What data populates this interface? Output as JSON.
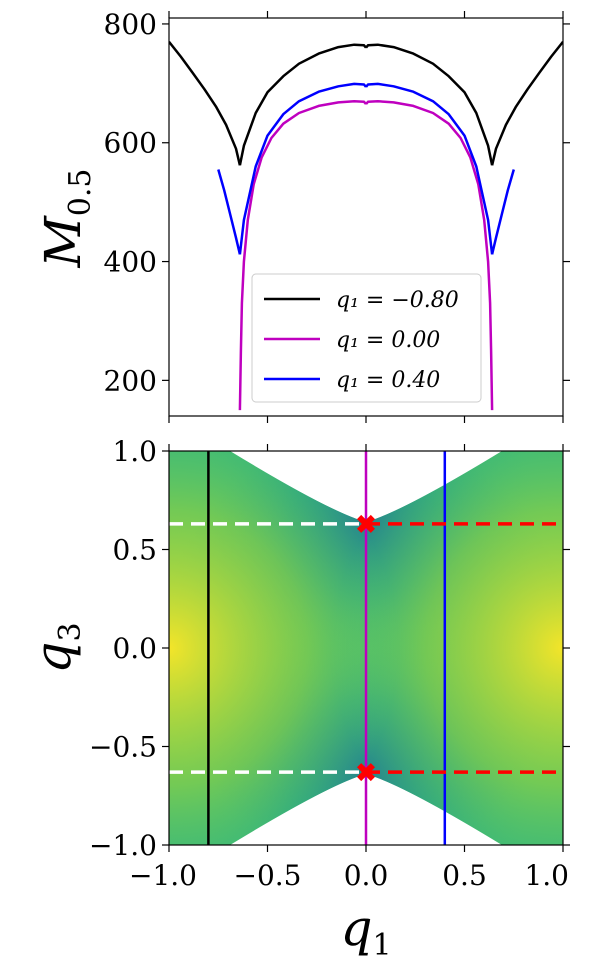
{
  "figure": {
    "top_panel": {
      "type": "line",
      "ylabel": "M_0.5",
      "ylabel_main": "M",
      "ylabel_sub": "0.5",
      "xlim": [
        -1.0,
        1.0
      ],
      "ylim": [
        140,
        810
      ],
      "yticks": [
        200,
        400,
        600,
        800
      ],
      "ytick_labels": [
        "200",
        "400",
        "600",
        "800"
      ],
      "legend_position": "lower-center",
      "series": [
        {
          "name": "q1 = -0.80",
          "label": "q₁ = −0.80",
          "color": "#000000",
          "segments": [
            {
              "q": [
                -1.0,
                -0.94,
                -0.88,
                -0.82,
                -0.76,
                -0.71,
                -0.66,
                -0.64
              ],
              "M": [
                770,
                745,
                718,
                690,
                660,
                630,
                590,
                562
              ]
            },
            {
              "q": [
                -0.64,
                -0.62,
                -0.56,
                -0.5,
                -0.42,
                -0.34,
                -0.24,
                -0.14,
                -0.06,
                -0.01,
                0.0
              ],
              "M": [
                562,
                595,
                650,
                685,
                712,
                733,
                750,
                761,
                765,
                764,
                760
              ]
            },
            {
              "q": [
                0.0,
                0.01,
                0.06,
                0.14,
                0.24,
                0.34,
                0.42,
                0.5,
                0.56,
                0.62,
                0.64
              ],
              "M": [
                760,
                764,
                765,
                761,
                750,
                733,
                712,
                685,
                650,
                595,
                562
              ]
            },
            {
              "q": [
                0.64,
                0.66,
                0.71,
                0.76,
                0.82,
                0.88,
                0.94,
                1.0
              ],
              "M": [
                562,
                590,
                630,
                660,
                690,
                718,
                745,
                770
              ]
            }
          ]
        },
        {
          "name": "q1 = 0.00",
          "label": "q₁ = 0.00",
          "color": "#bf00bf",
          "segments": [
            {
              "q": [
                -0.64,
                -0.635,
                -0.63,
                -0.62,
                -0.6,
                -0.57,
                -0.53,
                -0.48,
                -0.42,
                -0.34,
                -0.24,
                -0.14,
                -0.06,
                -0.01,
                0.0
              ],
              "M": [
                150,
                250,
                330,
                400,
                470,
                530,
                575,
                608,
                632,
                650,
                662,
                668,
                670,
                669,
                665
              ]
            },
            {
              "q": [
                0.0,
                0.01,
                0.06,
                0.14,
                0.24,
                0.34,
                0.42,
                0.48,
                0.53,
                0.57,
                0.6,
                0.62,
                0.63,
                0.635,
                0.64
              ],
              "M": [
                665,
                669,
                670,
                668,
                662,
                650,
                632,
                608,
                575,
                530,
                470,
                400,
                330,
                250,
                150
              ]
            }
          ]
        },
        {
          "name": "q1 = 0.40",
          "label": "q₁ = 0.40",
          "color": "#0000ff",
          "segments": [
            {
              "q": [
                -0.75,
                -0.72,
                -0.69,
                -0.66,
                -0.64
              ],
              "M": [
                555,
                520,
                480,
                440,
                412
              ]
            },
            {
              "q": [
                -0.64,
                -0.62,
                -0.56,
                -0.5,
                -0.42,
                -0.34,
                -0.24,
                -0.14,
                -0.06,
                -0.01,
                0.0
              ],
              "M": [
                412,
                470,
                560,
                612,
                648,
                670,
                686,
                695,
                699,
                698,
                694
              ]
            },
            {
              "q": [
                0.0,
                0.01,
                0.06,
                0.14,
                0.24,
                0.34,
                0.42,
                0.5,
                0.56,
                0.62,
                0.64
              ],
              "M": [
                694,
                698,
                699,
                695,
                686,
                670,
                648,
                612,
                560,
                470,
                412
              ]
            },
            {
              "q": [
                0.64,
                0.66,
                0.69,
                0.72,
                0.75
              ],
              "M": [
                412,
                440,
                480,
                520,
                555
              ]
            }
          ]
        }
      ]
    },
    "bottom_panel": {
      "type": "heatmap",
      "xlabel": "q_1",
      "xlabel_main": "q",
      "xlabel_sub": "1",
      "ylabel": "q_3",
      "ylabel_main": "q",
      "ylabel_sub": "3",
      "xlim": [
        -1.0,
        1.0
      ],
      "ylim": [
        -1.0,
        1.0
      ],
      "xticks": [
        -1.0,
        -0.5,
        0.0,
        0.5,
        1.0
      ],
      "xtick_labels": [
        "−1.0",
        "−0.5",
        "0.0",
        "0.5",
        "1.0"
      ],
      "yticks": [
        -1.0,
        -0.5,
        0.0,
        0.5,
        1.0
      ],
      "ytick_labels": [
        "−1.0",
        "−0.5",
        "0.0",
        "0.5",
        "1.0"
      ],
      "colormap": "viridis",
      "vertical_lines": [
        {
          "x": -0.8,
          "color": "#000000"
        },
        {
          "x": 0.0,
          "color": "#bf00bf"
        },
        {
          "x": 0.4,
          "color": "#0000ff"
        }
      ],
      "horizontal_dashed": [
        {
          "y": 0.63,
          "segments": [
            {
              "from": -1.0,
              "to": 0.0,
              "color": "#ffffff"
            },
            {
              "from": 0.0,
              "to": 1.0,
              "color": "#ff0000"
            }
          ]
        },
        {
          "y": -0.63,
          "segments": [
            {
              "from": -1.0,
              "to": 0.0,
              "color": "#ffffff"
            },
            {
              "from": 0.0,
              "to": 1.0,
              "color": "#ff0000"
            }
          ]
        }
      ],
      "markers": [
        {
          "x": 0.0,
          "y": 0.63,
          "color": "#ff0000",
          "symbol": "X"
        },
        {
          "x": 0.0,
          "y": -0.63,
          "color": "#ff0000",
          "symbol": "X"
        }
      ]
    }
  }
}
